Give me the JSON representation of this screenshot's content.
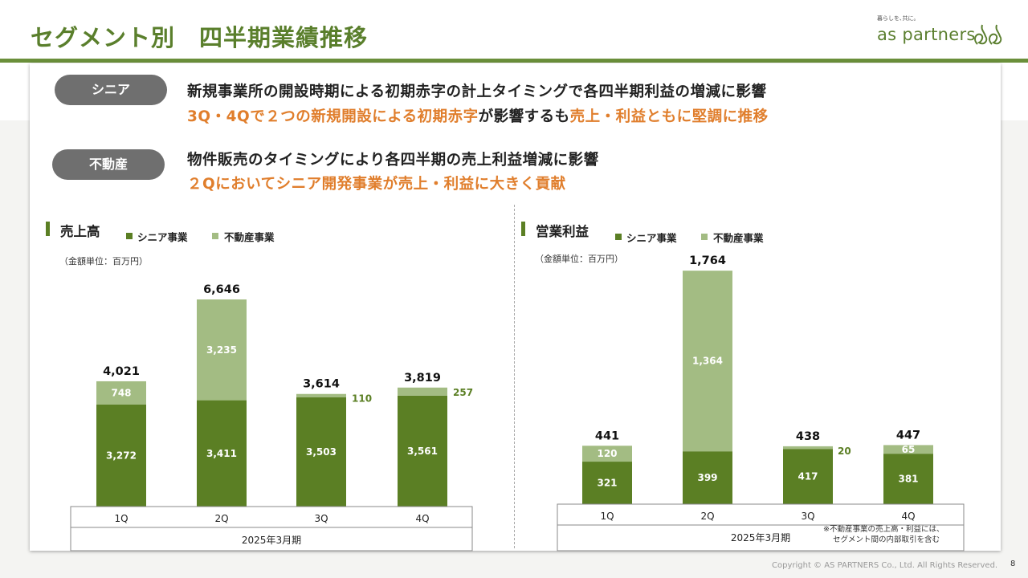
{
  "header": {
    "title": "セグメント別　四半期業績推移",
    "logo_tagline": "暮らしを､共に｡",
    "logo_name": "as partners"
  },
  "summary": {
    "senior": {
      "label": "シニア",
      "line1": "新規事業所の開設時期による初期赤字の計上タイミングで各四半期利益の増減に影響",
      "line2_orange1": "3Q・4Qで２つの新規開設による初期赤字",
      "line2_black": "が影響するも",
      "line2_orange2": "売上・利益ともに堅調に推移"
    },
    "realestate": {
      "label": "不動産",
      "line1": "物件販売のタイミングにより各四半期の売上利益増減に影響",
      "line2": "２Qにおいてシニア開発事業が売上・利益に大きく貢献"
    }
  },
  "legend": {
    "senior": "シニア事業",
    "realestate": "不動産事業"
  },
  "unit_note": "（金額単位：百万円）",
  "footnote_line1": "※不動産事業の売上高・利益には、",
  "footnote_line2": "セグメント間の内部取引を含む",
  "copyright": "Copyright © AS PARTNERS Co., Ltd. All Rights Reserved.",
  "page_number": "8",
  "colors": {
    "senior": "#5b7f24",
    "realestate": "#a3bc83",
    "accent": "#e07e2c",
    "outside_label": "#5b7f24"
  },
  "chart_data": [
    {
      "type": "bar",
      "title": "売上高",
      "categories": [
        "1Q",
        "2Q",
        "3Q",
        "4Q"
      ],
      "period_label": "2025年3月期",
      "series": [
        {
          "name": "シニア事業",
          "values": [
            3272,
            3411,
            3503,
            3561
          ],
          "labels": [
            "3,272",
            "3,411",
            "3,503",
            "3,561"
          ]
        },
        {
          "name": "不動産事業",
          "values": [
            748,
            3235,
            110,
            257
          ],
          "labels": [
            "748",
            "3,235",
            "110",
            "257"
          ]
        }
      ],
      "totals": [
        4021,
        6646,
        3614,
        3819
      ],
      "total_labels": [
        "4,021",
        "6,646",
        "3,614",
        "3,819"
      ],
      "ylim": [
        0,
        6646
      ]
    },
    {
      "type": "bar",
      "title": "営業利益",
      "categories": [
        "1Q",
        "2Q",
        "3Q",
        "4Q"
      ],
      "period_label": "2025年3月期",
      "series": [
        {
          "name": "シニア事業",
          "values": [
            321,
            399,
            417,
            381
          ],
          "labels": [
            "321",
            "399",
            "417",
            "381"
          ]
        },
        {
          "name": "不動産事業",
          "values": [
            120,
            1364,
            20,
            65
          ],
          "labels": [
            "120",
            "1,364",
            "20",
            "65"
          ]
        }
      ],
      "totals": [
        441,
        1764,
        438,
        447
      ],
      "total_labels": [
        "441",
        "1,764",
        "438",
        "447"
      ],
      "ylim": [
        0,
        1764
      ]
    }
  ]
}
